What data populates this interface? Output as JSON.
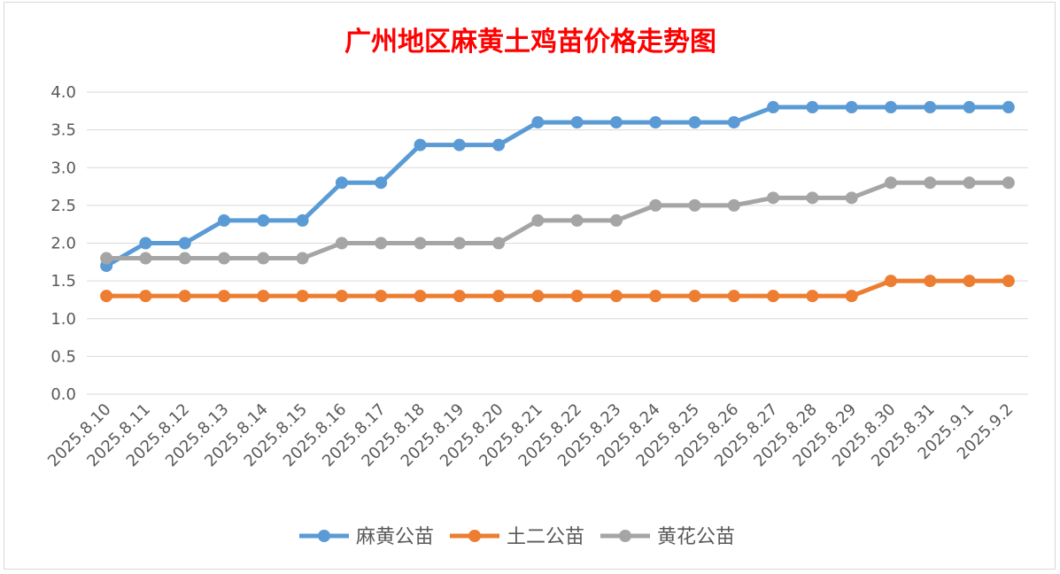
{
  "chart_data": {
    "type": "line",
    "title": "广州地区麻黄土鸡苗价格走势图",
    "xlabel": "",
    "ylabel": "",
    "ylim": [
      0,
      4.0
    ],
    "yticks": [
      "0.0",
      "0.5",
      "1.0",
      "1.5",
      "2.0",
      "2.5",
      "3.0",
      "3.5",
      "4.0"
    ],
    "grid": true,
    "legend_position": "bottom",
    "categories": [
      "2025.8.10",
      "2025.8.11",
      "2025.8.12",
      "2025.8.13",
      "2025.8.14",
      "2025.8.15",
      "2025.8.16",
      "2025.8.17",
      "2025.8.18",
      "2025.8.19",
      "2025.8.20",
      "2025.8.21",
      "2025.8.22",
      "2025.8.23",
      "2025.8.24",
      "2025.8.25",
      "2025.8.26",
      "2025.8.27",
      "2025.8.28",
      "2025.8.29",
      "2025.8.30",
      "2025.8.31",
      "2025.9.1",
      "2025.9.2"
    ],
    "series": [
      {
        "name": "麻黄公苗",
        "color": "#5b9bd5",
        "values": [
          1.7,
          2.0,
          2.0,
          2.3,
          2.3,
          2.3,
          2.8,
          2.8,
          3.3,
          3.3,
          3.3,
          3.6,
          3.6,
          3.6,
          3.6,
          3.6,
          3.6,
          3.8,
          3.8,
          3.8,
          3.8,
          3.8,
          3.8,
          3.8
        ]
      },
      {
        "name": "土二公苗",
        "color": "#ed7d31",
        "values": [
          1.3,
          1.3,
          1.3,
          1.3,
          1.3,
          1.3,
          1.3,
          1.3,
          1.3,
          1.3,
          1.3,
          1.3,
          1.3,
          1.3,
          1.3,
          1.3,
          1.3,
          1.3,
          1.3,
          1.3,
          1.5,
          1.5,
          1.5,
          1.5
        ]
      },
      {
        "name": "黄花公苗",
        "color": "#a5a5a5",
        "values": [
          1.8,
          1.8,
          1.8,
          1.8,
          1.8,
          1.8,
          2.0,
          2.0,
          2.0,
          2.0,
          2.0,
          2.3,
          2.3,
          2.3,
          2.5,
          2.5,
          2.5,
          2.6,
          2.6,
          2.6,
          2.8,
          2.8,
          2.8,
          2.8
        ]
      }
    ],
    "title_color": "#ff0000"
  }
}
